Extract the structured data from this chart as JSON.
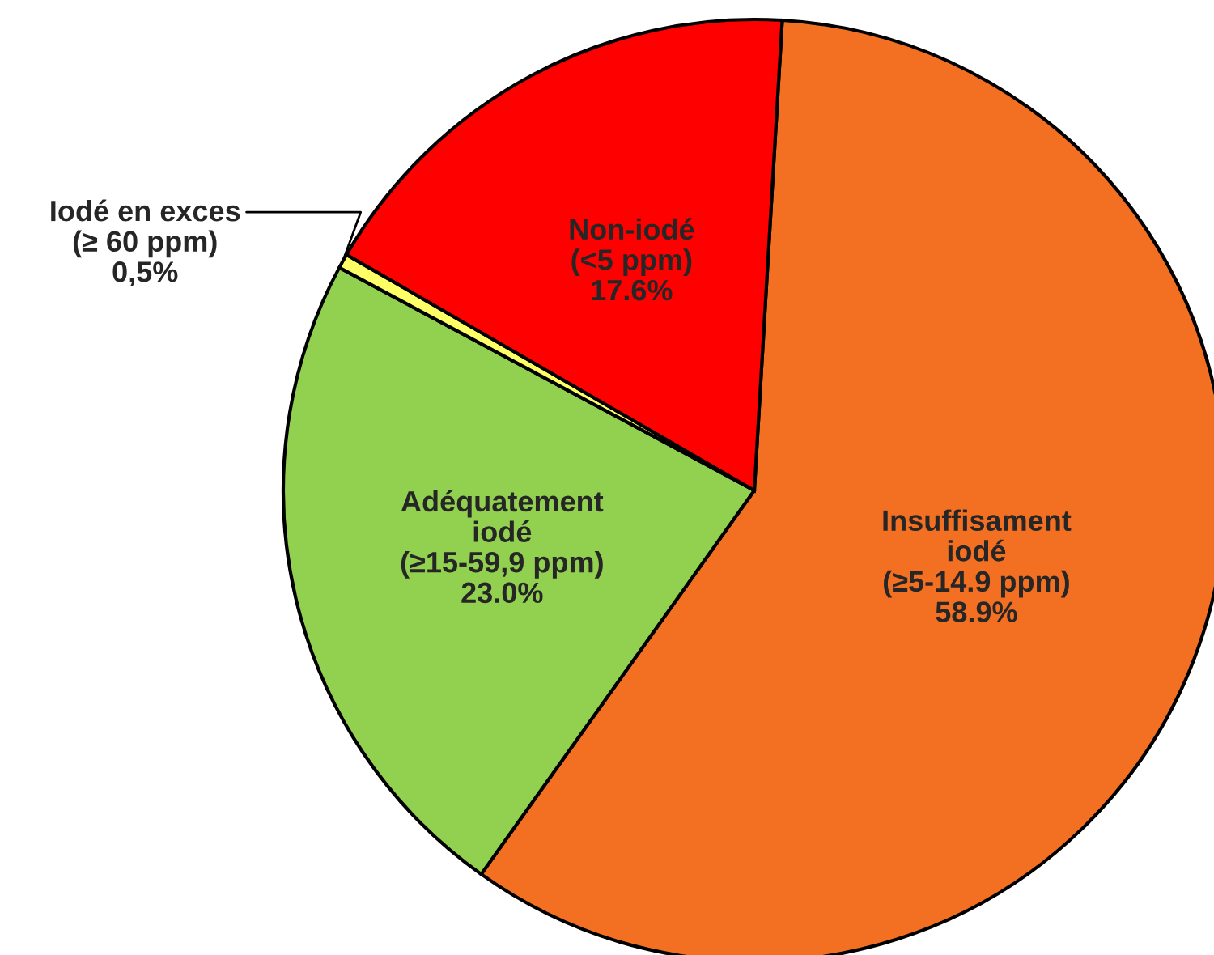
{
  "chart_data": {
    "type": "pie",
    "categories": [
      "Insuffisament\niodé\n(≥5-14.9 ppm)",
      "Adéquatement\niodé\n(≥15-59,9 ppm)",
      "Iodé en exces\n(≥ 60 ppm)",
      "Non-iodé\n(<5 ppm)"
    ],
    "values": [
      58.9,
      23.0,
      0.5,
      17.6
    ],
    "value_labels": [
      "58.9%",
      "23.0%",
      "0,5%",
      "17.6%"
    ],
    "colors": [
      "#f37022",
      "#92d050",
      "#ffff66",
      "#ff0000"
    ]
  }
}
